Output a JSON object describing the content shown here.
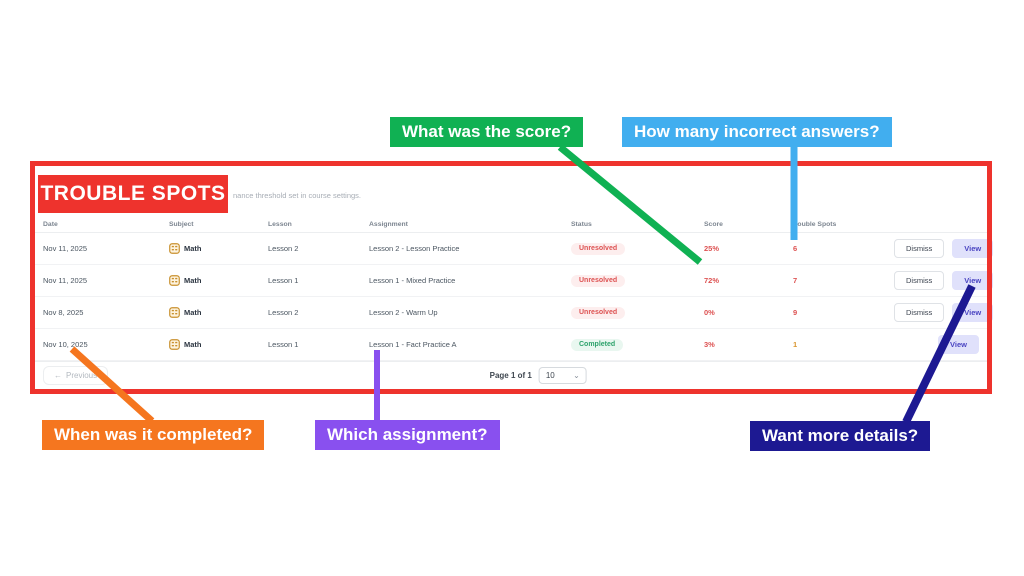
{
  "colors": {
    "annotation_red": "#ee332d"
  },
  "callouts": [
    {
      "id": "score",
      "label": "What was the score?",
      "color": "#10b153"
    },
    {
      "id": "incorrect",
      "label": "How many incorrect answers?",
      "color": "#41aeef"
    },
    {
      "id": "completed",
      "label": "When was it completed?",
      "color": "#f5761f"
    },
    {
      "id": "assignment",
      "label": "Which assignment?",
      "color": "#8950ef"
    },
    {
      "id": "details",
      "label": "Want more details?",
      "color": "#1d1992"
    }
  ],
  "panel": {
    "title": "TROUBLE SPOTS",
    "subtitle_fragment": "nance threshold set in course settings.",
    "table": {
      "columns": [
        "Date",
        "Subject",
        "Lesson",
        "Assignment",
        "Status",
        "Score",
        "Trouble Spots",
        ""
      ],
      "rows": [
        {
          "date": "Nov 11, 2025",
          "subject": "Math",
          "lesson": "Lesson 2",
          "assignment": "Lesson 2 - Lesson Practice",
          "status": "Unresolved",
          "score": "25%",
          "trouble_spots": "6",
          "trouble_level": "high",
          "actions": [
            "Dismiss",
            "View"
          ]
        },
        {
          "date": "Nov 11, 2025",
          "subject": "Math",
          "lesson": "Lesson 1",
          "assignment": "Lesson 1 - Mixed Practice",
          "status": "Unresolved",
          "score": "72%",
          "trouble_spots": "7",
          "trouble_level": "high",
          "actions": [
            "Dismiss",
            "View"
          ]
        },
        {
          "date": "Nov 8, 2025",
          "subject": "Math",
          "lesson": "Lesson 2",
          "assignment": "Lesson 2 - Warm Up",
          "status": "Unresolved",
          "score": "0%",
          "trouble_spots": "9",
          "trouble_level": "high",
          "actions": [
            "Dismiss",
            "View"
          ]
        },
        {
          "date": "Nov 10, 2025",
          "subject": "Math",
          "lesson": "Lesson 1",
          "assignment": "Lesson 1 - Fact Practice A",
          "status": "Completed",
          "score": "3%",
          "trouble_spots": "1",
          "trouble_level": "low",
          "actions": [
            "View"
          ]
        }
      ]
    },
    "pagination": {
      "prev_arrow": "←",
      "previous_label": "Previous",
      "page_text": "Page 1 of 1",
      "page_size": "10",
      "chevron": "⌄"
    }
  }
}
